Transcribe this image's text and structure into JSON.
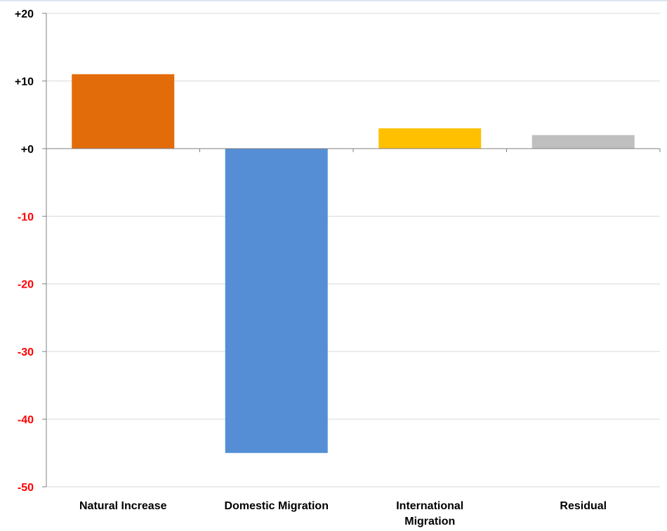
{
  "chart_data": {
    "type": "bar",
    "categories": [
      "Natural Increase",
      "Domestic Migration",
      "International Migration",
      "Residual"
    ],
    "category_lines": [
      [
        "Natural Increase"
      ],
      [
        "Domestic Migration"
      ],
      [
        "International",
        "Migration"
      ],
      [
        "Residual"
      ]
    ],
    "values": [
      11,
      -45,
      3,
      2
    ],
    "bar_colors": [
      "#e36c0a",
      "#558ed5",
      "#ffc000",
      "#bfbfbf"
    ],
    "ylim": [
      -50,
      20
    ],
    "yticks": [
      20,
      10,
      0,
      -10,
      -20,
      -30,
      -40,
      -50
    ],
    "ytick_labels": [
      "+20",
      "+10",
      "+0",
      "-10",
      "-20",
      "-30",
      "-40",
      "-50"
    ],
    "positive_label_color": "#000000",
    "negative_label_color": "#ff0000",
    "grid": true,
    "title": "",
    "xlabel": "",
    "ylabel": ""
  }
}
